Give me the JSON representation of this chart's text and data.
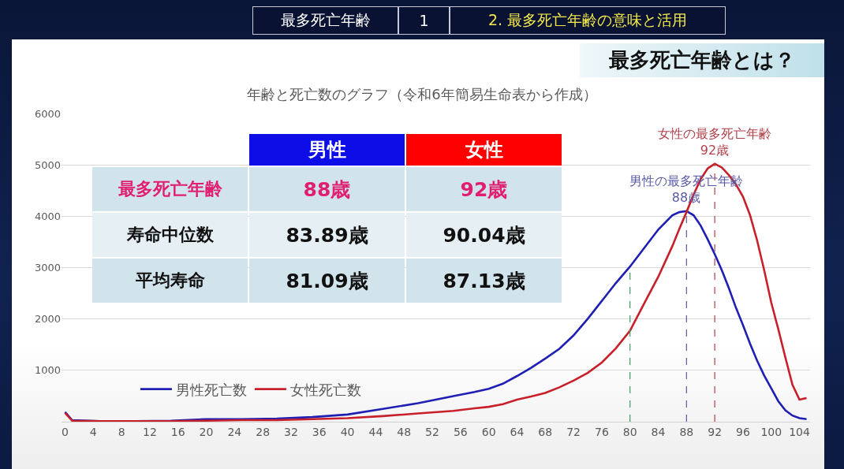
{
  "chart_data": [
    {
      "type": "other",
      "title": "最多死亡年齢とは？",
      "annotations": [
        "最多死亡年齢",
        "1",
        "2. 最多死亡年齢の意味と活用"
      ]
    },
    {
      "type": "line",
      "title": "年齢と死亡数のグラフ（令和6年簡易生命表から作成）",
      "x": [
        0,
        1,
        5,
        10,
        15,
        20,
        25,
        30,
        35,
        40,
        45,
        50,
        55,
        58,
        60,
        62,
        64,
        66,
        68,
        70,
        72,
        74,
        76,
        78,
        80,
        82,
        84,
        86,
        87,
        88,
        89,
        90,
        91,
        92,
        93,
        94,
        95,
        96,
        97,
        98,
        99,
        100,
        101,
        102,
        103,
        104,
        105
      ],
      "series": [
        {
          "name": "男性死亡数",
          "color": "#1f1fb4",
          "values": [
            190,
            30,
            10,
            10,
            20,
            50,
            50,
            60,
            90,
            140,
            250,
            360,
            500,
            580,
            640,
            740,
            890,
            1050,
            1230,
            1420,
            1680,
            2000,
            2350,
            2700,
            3020,
            3380,
            3740,
            4020,
            4080,
            4100,
            4020,
            3820,
            3550,
            3260,
            2950,
            2600,
            2220,
            1880,
            1520,
            1190,
            900,
            650,
            400,
            220,
            120,
            70,
            50
          ]
        },
        {
          "name": "女性死亡数",
          "color": "#c8202a",
          "values": [
            170,
            20,
            10,
            10,
            10,
            20,
            30,
            30,
            50,
            70,
            110,
            160,
            210,
            260,
            290,
            340,
            430,
            490,
            560,
            670,
            800,
            950,
            1150,
            1430,
            1770,
            2300,
            2820,
            3420,
            3760,
            4080,
            4420,
            4720,
            4930,
            5020,
            4950,
            4800,
            4620,
            4380,
            4020,
            3530,
            2950,
            2320,
            1800,
            1250,
            720,
            430,
            460
          ]
        }
      ],
      "xlim": [
        -0.5,
        105.5
      ],
      "xticks": [
        0,
        4,
        8,
        12,
        16,
        20,
        24,
        28,
        32,
        36,
        40,
        44,
        48,
        52,
        56,
        60,
        64,
        68,
        72,
        76,
        80,
        84,
        88,
        92,
        96,
        100,
        104
      ],
      "ylim": [
        0,
        6000
      ],
      "yticks": [
        1000,
        2000,
        3000,
        4000,
        5000,
        6000
      ],
      "grid": "y",
      "legend": "bottom left",
      "ref_lines": [
        {
          "axis": "x",
          "value": 80,
          "color": "#3c9a5f",
          "line_style": "dashed"
        },
        {
          "axis": "x",
          "value": 88,
          "color": "#5a5aa8",
          "line_style": "dashed"
        },
        {
          "axis": "x",
          "value": 92,
          "color": "#b0404a",
          "line_style": "dashed"
        }
      ],
      "annotations": [
        {
          "text": "女性の最多死亡年齢\n92歳",
          "x": 92,
          "y": 5020
        },
        {
          "text": "男性の最多死亡年齢\n88歳",
          "x": 88,
          "y": 4100
        }
      ]
    },
    {
      "type": "other",
      "annotations": [
        "男性",
        "女性",
        "最多死亡年齢",
        "88歳",
        "92歳",
        "寿命中位数",
        "83.89歳",
        "90.04歳",
        "平均寿命",
        "81.09歳",
        "87.13歳"
      ]
    }
  ]
}
